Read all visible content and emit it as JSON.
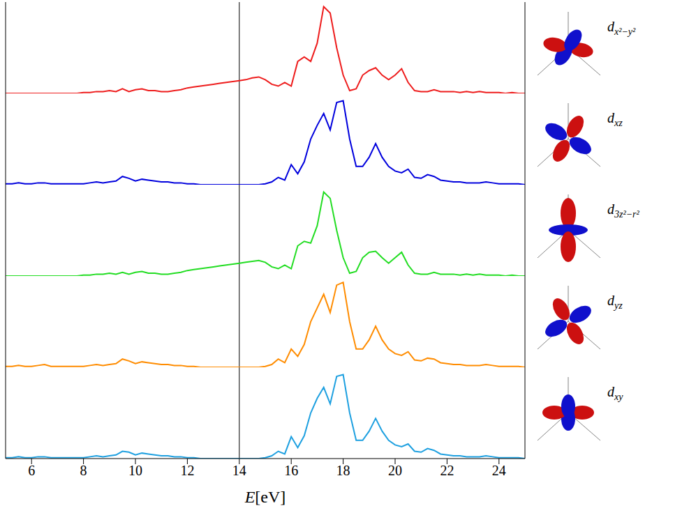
{
  "chart_data": {
    "type": "line",
    "x_label": "E[eV]",
    "xlim": [
      5,
      25
    ],
    "xticks": [
      6,
      8,
      10,
      12,
      14,
      16,
      18,
      20,
      22,
      24
    ],
    "ylim": [
      0,
      1
    ],
    "yticks": [],
    "tick_labels": "x",
    "vline_x": 14,
    "x": [
      5,
      5.25,
      5.5,
      5.75,
      6,
      6.25,
      6.5,
      6.75,
      7,
      7.25,
      7.5,
      7.75,
      8,
      8.25,
      8.5,
      8.75,
      9,
      9.25,
      9.5,
      9.75,
      10,
      10.25,
      10.5,
      10.75,
      11,
      11.25,
      11.5,
      11.75,
      12,
      12.25,
      12.5,
      12.75,
      13,
      13.25,
      13.5,
      13.75,
      14,
      14.25,
      14.5,
      14.75,
      15,
      15.25,
      15.5,
      15.75,
      16,
      16.25,
      16.5,
      16.75,
      17,
      17.25,
      17.5,
      17.75,
      18,
      18.25,
      18.5,
      18.75,
      19,
      19.25,
      19.5,
      19.75,
      20,
      20.25,
      20.5,
      20.75,
      21,
      21.25,
      21.5,
      21.75,
      22,
      22.25,
      22.5,
      22.75,
      23,
      23.25,
      23.5,
      23.75,
      24,
      24.25,
      24.5,
      24.75,
      25
    ],
    "series": [
      {
        "name": "dx²−y²",
        "color": "#ee1c1c",
        "values": [
          0,
          0,
          0,
          0,
          0,
          0,
          0,
          0,
          0,
          0,
          0,
          0,
          0.01,
          0.01,
          0.02,
          0.02,
          0.03,
          0.02,
          0.05,
          0.02,
          0.04,
          0.05,
          0.03,
          0.03,
          0.02,
          0.02,
          0.03,
          0.04,
          0.06,
          0.07,
          0.08,
          0.09,
          0.1,
          0.11,
          0.12,
          0.13,
          0.14,
          0.15,
          0.17,
          0.18,
          0.15,
          0.1,
          0.08,
          0.12,
          0.08,
          0.35,
          0.4,
          0.35,
          0.55,
          0.95,
          0.88,
          0.5,
          0.2,
          0.03,
          0.05,
          0.2,
          0.25,
          0.28,
          0.2,
          0.15,
          0.2,
          0.27,
          0.12,
          0.03,
          0.02,
          0.02,
          0.04,
          0.02,
          0.02,
          0.02,
          0.01,
          0.02,
          0.01,
          0.02,
          0.01,
          0.01,
          0.01,
          0,
          0.01,
          0,
          0
        ]
      },
      {
        "name": "dxz",
        "color": "#0000dd",
        "values": [
          0.01,
          0.01,
          0.02,
          0.01,
          0.01,
          0.02,
          0.02,
          0.01,
          0.01,
          0.01,
          0.01,
          0.01,
          0.01,
          0.02,
          0.03,
          0.02,
          0.03,
          0.04,
          0.09,
          0.07,
          0.04,
          0.06,
          0.05,
          0.04,
          0.03,
          0.03,
          0.02,
          0.02,
          0.01,
          0.01,
          0,
          0,
          0,
          0,
          0,
          0,
          0,
          0,
          0,
          0,
          0.01,
          0.03,
          0.08,
          0.05,
          0.22,
          0.12,
          0.25,
          0.5,
          0.65,
          0.78,
          0.6,
          0.9,
          0.92,
          0.5,
          0.2,
          0.2,
          0.3,
          0.45,
          0.3,
          0.2,
          0.15,
          0.13,
          0.17,
          0.08,
          0.07,
          0.11,
          0.09,
          0.05,
          0.04,
          0.03,
          0.03,
          0.02,
          0.02,
          0.02,
          0.03,
          0.02,
          0.01,
          0.01,
          0.01,
          0.01,
          0
        ]
      },
      {
        "name": "d3z²−r²",
        "color": "#22dd22",
        "values": [
          0,
          0,
          0,
          0,
          0,
          0,
          0,
          0,
          0,
          0,
          0,
          0,
          0.01,
          0.01,
          0.02,
          0.02,
          0.03,
          0.02,
          0.04,
          0.02,
          0.04,
          0.05,
          0.03,
          0.03,
          0.02,
          0.02,
          0.03,
          0.04,
          0.06,
          0.07,
          0.08,
          0.09,
          0.1,
          0.11,
          0.12,
          0.13,
          0.14,
          0.15,
          0.16,
          0.17,
          0.15,
          0.1,
          0.08,
          0.12,
          0.08,
          0.33,
          0.38,
          0.36,
          0.55,
          0.92,
          0.85,
          0.5,
          0.2,
          0.03,
          0.05,
          0.2,
          0.26,
          0.27,
          0.2,
          0.14,
          0.2,
          0.26,
          0.12,
          0.03,
          0.02,
          0.02,
          0.04,
          0.02,
          0.02,
          0.02,
          0.01,
          0.02,
          0.01,
          0.02,
          0.01,
          0.01,
          0.01,
          0,
          0.01,
          0,
          0
        ]
      },
      {
        "name": "dyz",
        "color": "#ff8c00",
        "values": [
          0.01,
          0.01,
          0.02,
          0.01,
          0.01,
          0.02,
          0.03,
          0.01,
          0.01,
          0.01,
          0.01,
          0.01,
          0.01,
          0.02,
          0.03,
          0.02,
          0.03,
          0.04,
          0.09,
          0.07,
          0.04,
          0.06,
          0.05,
          0.04,
          0.03,
          0.03,
          0.02,
          0.02,
          0.01,
          0.01,
          0,
          0,
          0,
          0,
          0,
          0,
          0,
          0,
          0,
          0,
          0.01,
          0.03,
          0.09,
          0.05,
          0.2,
          0.12,
          0.25,
          0.5,
          0.65,
          0.8,
          0.6,
          0.9,
          0.93,
          0.5,
          0.2,
          0.2,
          0.3,
          0.45,
          0.3,
          0.2,
          0.15,
          0.13,
          0.17,
          0.08,
          0.07,
          0.1,
          0.09,
          0.05,
          0.04,
          0.03,
          0.03,
          0.02,
          0.02,
          0.02,
          0.03,
          0.02,
          0.01,
          0.01,
          0.01,
          0.01,
          0
        ]
      },
      {
        "name": "dxy",
        "color": "#1ea0e0",
        "values": [
          0.01,
          0.01,
          0.02,
          0.01,
          0.01,
          0.02,
          0.02,
          0.01,
          0.01,
          0.01,
          0.01,
          0.01,
          0.01,
          0.02,
          0.03,
          0.02,
          0.03,
          0.04,
          0.08,
          0.07,
          0.04,
          0.06,
          0.05,
          0.04,
          0.03,
          0.03,
          0.02,
          0.02,
          0.01,
          0.01,
          0,
          0,
          0,
          0,
          0,
          0,
          0,
          0,
          0,
          0,
          0.01,
          0.03,
          0.08,
          0.05,
          0.24,
          0.12,
          0.25,
          0.5,
          0.66,
          0.78,
          0.6,
          0.9,
          0.92,
          0.5,
          0.2,
          0.2,
          0.3,
          0.44,
          0.3,
          0.2,
          0.15,
          0.13,
          0.16,
          0.08,
          0.07,
          0.11,
          0.09,
          0.05,
          0.04,
          0.03,
          0.03,
          0.02,
          0.02,
          0.02,
          0.03,
          0.02,
          0.01,
          0.01,
          0.01,
          0.01,
          0
        ]
      }
    ]
  }
}
